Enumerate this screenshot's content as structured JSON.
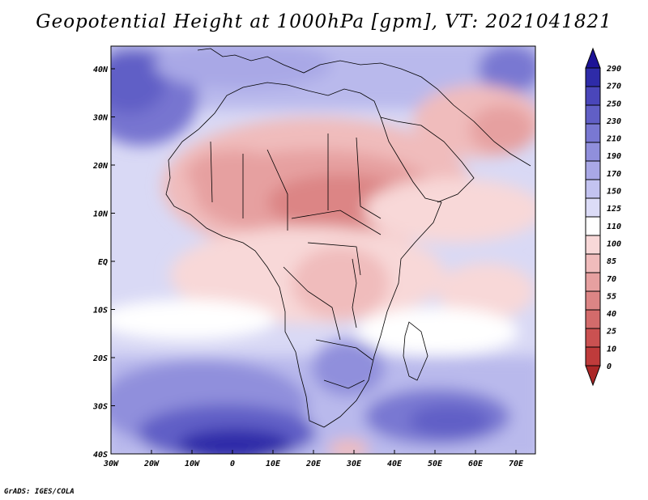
{
  "title": "Geopotential Height at 1000hPa [gpm], VT: 2021041821",
  "footer": "GrADS: IGES/COLA",
  "lat_labels": [
    "40N",
    "30N",
    "20N",
    "10N",
    "EQ",
    "10S",
    "20S",
    "30S",
    "40S"
  ],
  "lon_labels": [
    "30W",
    "20W",
    "10W",
    "0",
    "10E",
    "20E",
    "30E",
    "40E",
    "50E",
    "60E",
    "70E"
  ],
  "colorbar": {
    "labels": [
      "290",
      "270",
      "250",
      "230",
      "210",
      "190",
      "170",
      "150",
      "125",
      "110",
      "100",
      "85",
      "70",
      "55",
      "40",
      "25",
      "10",
      "0"
    ],
    "colors": [
      "#1c1296",
      "#2e2ba8",
      "#4a46ba",
      "#615fc6",
      "#7978d2",
      "#908fdc",
      "#a9a8e6",
      "#c3c3f0",
      "#dcdcf7",
      "#ffffff",
      "#f8d8d8",
      "#f0bcbc",
      "#e6a0a0",
      "#dc8585",
      "#d36b6b",
      "#ca5151",
      "#bf3b3b",
      "#ab2727"
    ]
  },
  "map": {
    "projection": "cylindrical",
    "lon_range": [
      -30,
      75
    ],
    "lat_range": [
      -40,
      45
    ],
    "field": "Geopotential Height at 1000hPa"
  }
}
